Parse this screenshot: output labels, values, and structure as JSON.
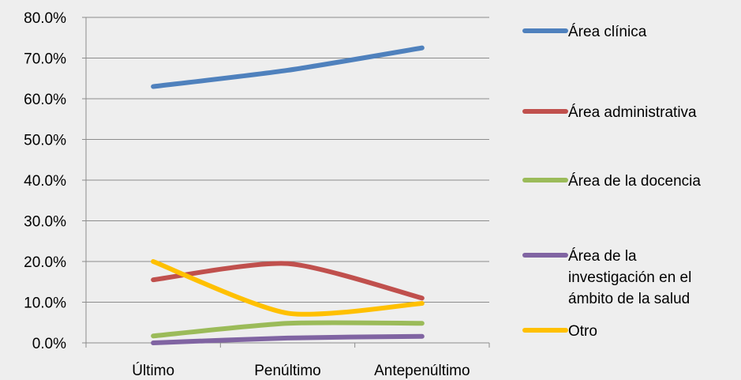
{
  "chart_data": {
    "type": "line",
    "categories": [
      "Último",
      "Penúltimo",
      "Antepenúltimo"
    ],
    "ylim": [
      0,
      0.8
    ],
    "yticks": [
      0.0,
      0.1,
      0.2,
      0.3,
      0.4,
      0.5,
      0.6,
      0.7,
      0.8
    ],
    "ytick_labels": [
      "0.0%",
      "10.0%",
      "20.0%",
      "30.0%",
      "40.0%",
      "50.0%",
      "60.0%",
      "70.0%",
      "80.0%"
    ],
    "grid": true,
    "legend_position": "right",
    "series": [
      {
        "name": "Área clínica",
        "color": "#4f81bd",
        "values": [
          0.63,
          0.67,
          0.725
        ]
      },
      {
        "name": "Área administrativa",
        "color": "#c0504d",
        "values": [
          0.155,
          0.195,
          0.11
        ]
      },
      {
        "name": "Área de la docencia",
        "color": "#9bbb59",
        "values": [
          0.017,
          0.048,
          0.048
        ]
      },
      {
        "name": "Área de la investigación en el ámbito de la salud",
        "legend_lines": [
          "Área de la",
          "investigación en el",
          "ámbito de la salud"
        ],
        "color": "#8064a2",
        "values": [
          0.0,
          0.012,
          0.016
        ]
      },
      {
        "name": "Otro",
        "color": "#ffc000",
        "values": [
          0.2,
          0.073,
          0.097
        ]
      }
    ]
  }
}
